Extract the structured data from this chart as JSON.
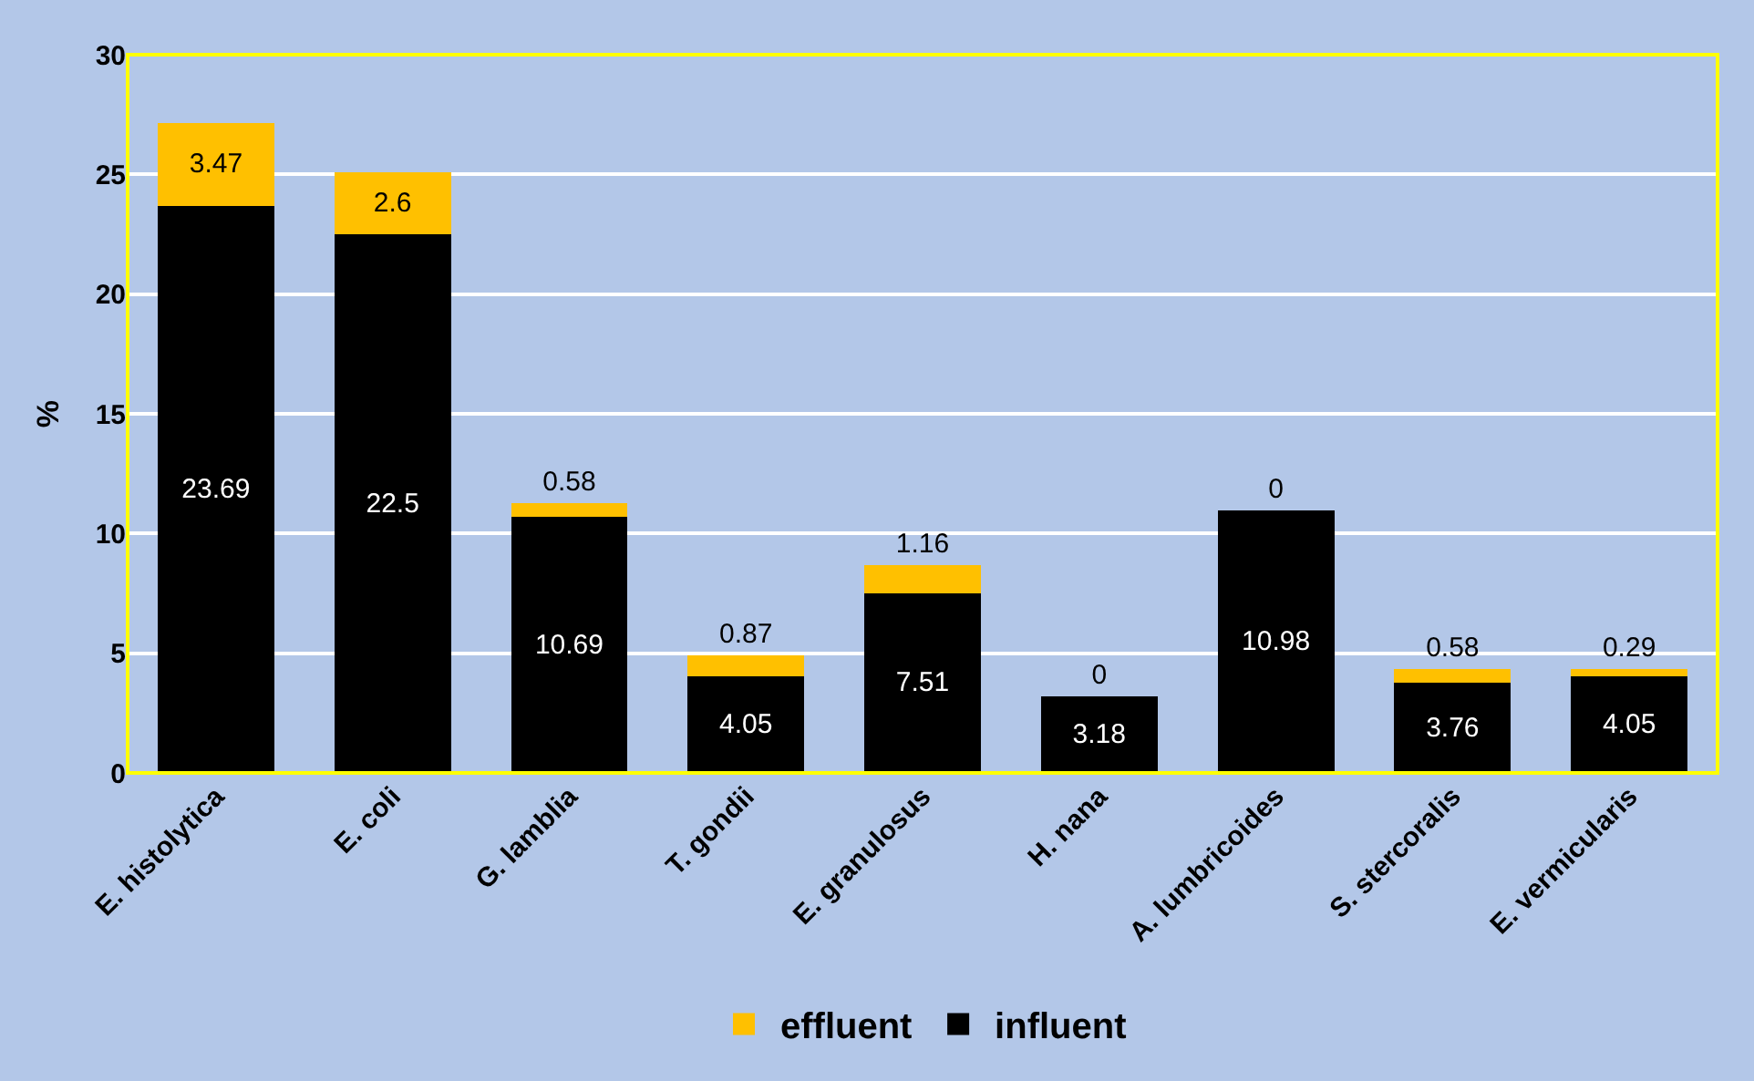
{
  "chart_data": {
    "type": "bar",
    "stacked": true,
    "ylabel": "%",
    "categories": [
      "E. histolytica",
      "E. coli",
      "G. lamblia",
      "T. gondii",
      "E. granulosus",
      "H. nana",
      "A. lumbricoides",
      "S. stercoralis",
      "E. vermicularis"
    ],
    "series": [
      {
        "name": "influent",
        "color": "#000000",
        "values": [
          23.69,
          22.5,
          10.69,
          4.05,
          7.51,
          3.18,
          10.98,
          3.76,
          4.05
        ]
      },
      {
        "name": "effluent",
        "color": "#ffc000",
        "values": [
          3.47,
          2.6,
          0.58,
          0.87,
          1.16,
          0,
          0,
          0.58,
          0.29
        ]
      }
    ],
    "ylim": [
      0,
      30
    ],
    "yticks": [
      0,
      5,
      10,
      15,
      20,
      25,
      30
    ],
    "grid": "y",
    "legend": "bottom",
    "data_labels": true
  }
}
